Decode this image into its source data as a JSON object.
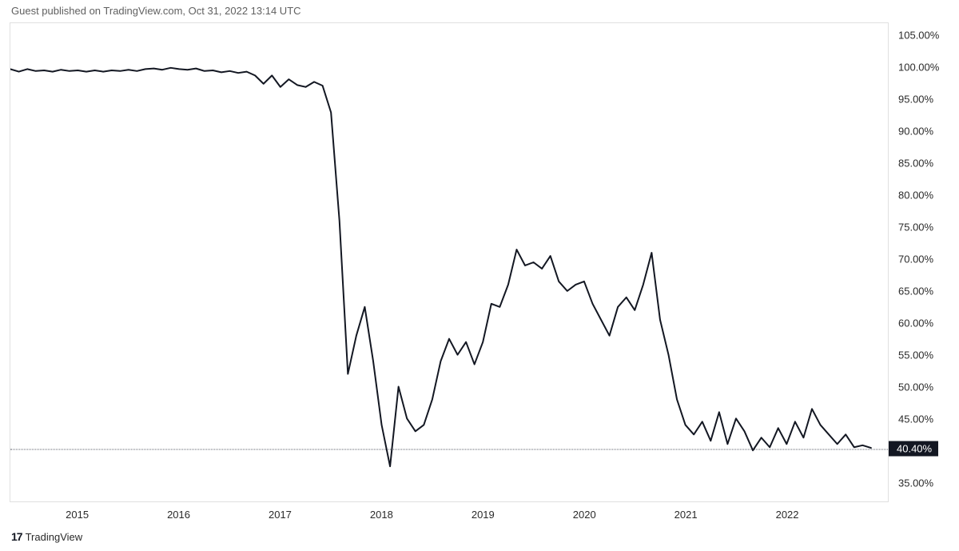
{
  "header": {
    "text": "Guest published on TradingView.com, Oct 31, 2022 13:14 UTC"
  },
  "footer": {
    "logo_text": "TradingView"
  },
  "chart": {
    "type": "line",
    "background_color": "#ffffff",
    "border_color": "#e0e0e0",
    "line_color": "#131722",
    "line_width": 2,
    "dotted_line_color": "#5d606b",
    "current_value_bg": "#131722",
    "current_value_fg": "#ffffff",
    "y_axis": {
      "min": 32,
      "max": 107,
      "ticks": [
        35,
        40,
        45,
        50,
        55,
        60,
        65,
        70,
        75,
        80,
        85,
        90,
        95,
        100,
        105
      ],
      "tick_labels": [
        "35.00%",
        "40.00%",
        "45.00%",
        "50.00%",
        "55.00%",
        "60.00%",
        "65.00%",
        "70.00%",
        "75.00%",
        "80.00%",
        "85.00%",
        "90.00%",
        "95.00%",
        "100.00%",
        "105.00%"
      ],
      "current_value": 40.4,
      "current_label": "40.40%"
    },
    "x_axis": {
      "min": 0,
      "max": 104,
      "ticks": [
        8,
        20,
        32,
        44,
        56,
        68,
        80,
        92
      ],
      "tick_labels": [
        "2015",
        "2016",
        "2017",
        "2018",
        "2019",
        "2020",
        "2021",
        "2022"
      ]
    },
    "series": {
      "data": [
        [
          0,
          99.8
        ],
        [
          1,
          99.4
        ],
        [
          2,
          99.8
        ],
        [
          3,
          99.5
        ],
        [
          4,
          99.6
        ],
        [
          5,
          99.4
        ],
        [
          6,
          99.7
        ],
        [
          7,
          99.5
        ],
        [
          8,
          99.6
        ],
        [
          9,
          99.4
        ],
        [
          10,
          99.6
        ],
        [
          11,
          99.4
        ],
        [
          12,
          99.6
        ],
        [
          13,
          99.5
        ],
        [
          14,
          99.7
        ],
        [
          15,
          99.5
        ],
        [
          16,
          99.8
        ],
        [
          17,
          99.9
        ],
        [
          18,
          99.7
        ],
        [
          19,
          100.0
        ],
        [
          20,
          99.8
        ],
        [
          21,
          99.7
        ],
        [
          22,
          99.9
        ],
        [
          23,
          99.5
        ],
        [
          24,
          99.6
        ],
        [
          25,
          99.3
        ],
        [
          26,
          99.5
        ],
        [
          27,
          99.2
        ],
        [
          28,
          99.4
        ],
        [
          29,
          98.8
        ],
        [
          30,
          97.5
        ],
        [
          31,
          98.8
        ],
        [
          32,
          97.0
        ],
        [
          33,
          98.2
        ],
        [
          34,
          97.3
        ],
        [
          35,
          97.0
        ],
        [
          36,
          97.8
        ],
        [
          37,
          97.2
        ],
        [
          38,
          93.0
        ],
        [
          39,
          76.0
        ],
        [
          40,
          52.0
        ],
        [
          41,
          58.0
        ],
        [
          42,
          62.5
        ],
        [
          43,
          54.0
        ],
        [
          44,
          44.0
        ],
        [
          45,
          37.5
        ],
        [
          46,
          50.0
        ],
        [
          47,
          45.0
        ],
        [
          48,
          43.0
        ],
        [
          49,
          44.0
        ],
        [
          50,
          48.0
        ],
        [
          51,
          54.0
        ],
        [
          52,
          57.5
        ],
        [
          53,
          55.0
        ],
        [
          54,
          57.0
        ],
        [
          55,
          53.5
        ],
        [
          56,
          57.0
        ],
        [
          57,
          63.0
        ],
        [
          58,
          62.5
        ],
        [
          59,
          66.0
        ],
        [
          60,
          71.5
        ],
        [
          61,
          69.0
        ],
        [
          62,
          69.5
        ],
        [
          63,
          68.5
        ],
        [
          64,
          70.5
        ],
        [
          65,
          66.5
        ],
        [
          66,
          65.0
        ],
        [
          67,
          66.0
        ],
        [
          68,
          66.5
        ],
        [
          69,
          63.0
        ],
        [
          70,
          60.5
        ],
        [
          71,
          58.0
        ],
        [
          72,
          62.5
        ],
        [
          73,
          64.0
        ],
        [
          74,
          62.0
        ],
        [
          75,
          66.0
        ],
        [
          76,
          71.0
        ],
        [
          77,
          60.5
        ],
        [
          78,
          55.0
        ],
        [
          79,
          48.0
        ],
        [
          80,
          44.0
        ],
        [
          81,
          42.5
        ],
        [
          82,
          44.5
        ],
        [
          83,
          41.5
        ],
        [
          84,
          46.0
        ],
        [
          85,
          41.0
        ],
        [
          86,
          45.0
        ],
        [
          87,
          43.0
        ],
        [
          88,
          40.0
        ],
        [
          89,
          42.0
        ],
        [
          90,
          40.5
        ],
        [
          91,
          43.5
        ],
        [
          92,
          41.0
        ],
        [
          93,
          44.5
        ],
        [
          94,
          42.0
        ],
        [
          95,
          46.5
        ],
        [
          96,
          44.0
        ],
        [
          97,
          42.5
        ],
        [
          98,
          41.0
        ],
        [
          99,
          42.5
        ],
        [
          100,
          40.5
        ],
        [
          101,
          40.8
        ],
        [
          102,
          40.4
        ]
      ]
    }
  }
}
